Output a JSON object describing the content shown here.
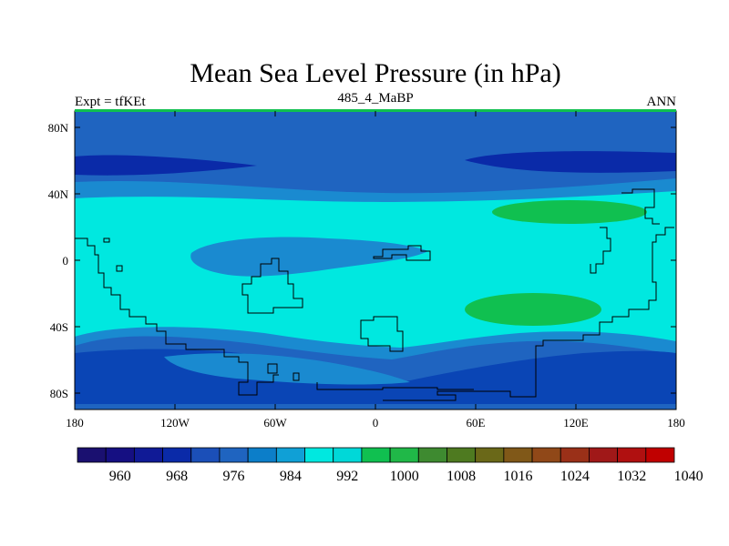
{
  "title": "Mean Sea Level Pressure (in hPa)",
  "left_label": "Expt = tfKEt",
  "center_label": "485_4_MaBP",
  "right_label": "ANN",
  "lat_ticks": [
    "80N",
    "40N",
    "0",
    "40S",
    "80S"
  ],
  "lon_ticks": [
    "180",
    "120W",
    "60W",
    "0",
    "60E",
    "120E",
    "180"
  ],
  "colorbar": {
    "labels": [
      "960",
      "968",
      "976",
      "984",
      "992",
      "1000",
      "1008",
      "1016",
      "1024",
      "1032",
      "1040"
    ],
    "colors": [
      "#1a1070",
      "#150f82",
      "#101a96",
      "#0a2aa8",
      "#1b4fb8",
      "#1f64c0",
      "#0c7ec9",
      "#10a0d6",
      "#00e8e0",
      "#00d8d8",
      "#10c050",
      "#20b848",
      "#3e8a30",
      "#4e7a20",
      "#6a6818",
      "#805818",
      "#904818",
      "#9a3018",
      "#a01818",
      "#b01010",
      "#c00000"
    ]
  },
  "colors": {
    "pressure_984": "#1f64c0",
    "pressure_992": "#1a8ad0",
    "pressure_1000": "#00e8e0",
    "pressure_1008": "#10c050",
    "pressure_976": "#0a2aa8",
    "pressure_968": "#101a96",
    "coastline": "#000000"
  }
}
